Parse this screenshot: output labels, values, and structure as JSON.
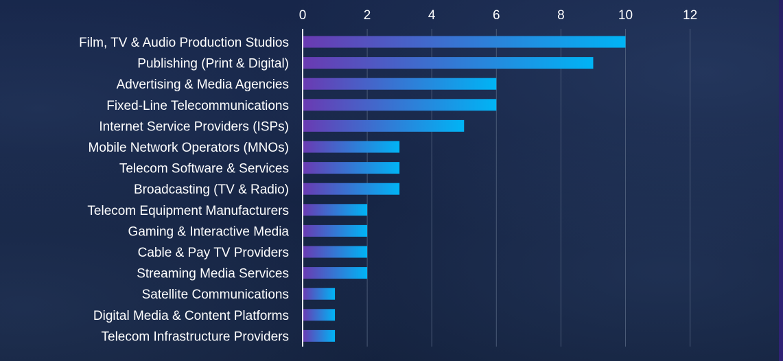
{
  "chart_data": {
    "type": "bar",
    "orientation": "horizontal",
    "categories": [
      "Film, TV & Audio Production Studios",
      "Publishing (Print & Digital)",
      "Advertising & Media Agencies",
      "Fixed-Line Telecommunications",
      "Internet Service Providers (ISPs)",
      "Mobile Network Operators (MNOs)",
      "Telecom Software & Services",
      "Broadcasting (TV & Radio)",
      "Telecom Equipment Manufacturers",
      "Gaming & Interactive Media",
      "Cable & Pay TV Providers",
      "Streaming Media Services",
      "Satellite Communications",
      "Digital Media & Content Platforms",
      "Telecom Infrastructure Providers"
    ],
    "values": [
      10,
      9,
      6,
      6,
      5,
      3,
      3,
      3,
      2,
      2,
      2,
      2,
      1,
      1,
      1
    ],
    "title": "",
    "xlabel": "",
    "ylabel": "",
    "xlim": [
      0,
      12
    ],
    "x_ticks": [
      0,
      2,
      4,
      6,
      8,
      10,
      12
    ],
    "x_axis_position": "top",
    "grid": true,
    "legend": "none",
    "colors": {
      "bar_start": "#6a3ab2",
      "bar_end": "#00b4f5",
      "text": "#ffffff",
      "grid": "#5a6a85",
      "axis": "#ffffff"
    }
  }
}
